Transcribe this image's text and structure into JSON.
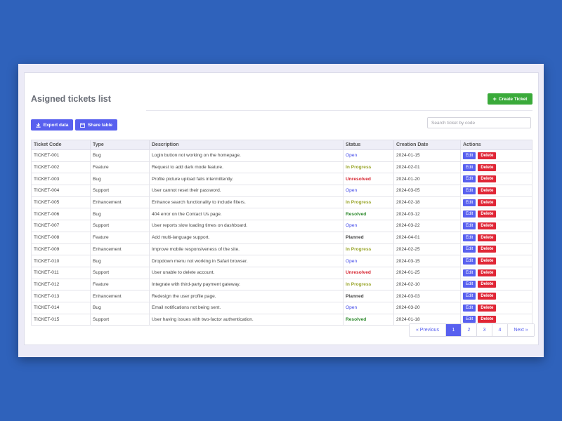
{
  "page": {
    "title": "Asigned tickets list",
    "create_label": "Create Ticket",
    "export_label": "Export data",
    "share_label": "Share table",
    "search_placeholder": "Search ticket by code"
  },
  "table": {
    "headers": [
      "Ticket Code",
      "Type",
      "Description",
      "Status",
      "Creation Date",
      "Actions"
    ],
    "edit_label": "Edit",
    "delete_label": "Delete",
    "rows": [
      {
        "code": "TICKET-001",
        "type": "Bug",
        "desc": "Login button not working on the homepage.",
        "status": "Open",
        "date": "2024-01-15"
      },
      {
        "code": "TICKET-002",
        "type": "Feature",
        "desc": "Request to add dark mode feature.",
        "status": "In Progress",
        "date": "2024-02-01"
      },
      {
        "code": "TICKET-003",
        "type": "Bug",
        "desc": "Profile picture upload fails intermittently.",
        "status": "Unresolved",
        "date": "2024-01-20"
      },
      {
        "code": "TICKET-004",
        "type": "Support",
        "desc": "User cannot reset their password.",
        "status": "Open",
        "date": "2024-03-05"
      },
      {
        "code": "TICKET-005",
        "type": "Enhancement",
        "desc": "Enhance search functionality to include filters.",
        "status": "In Progress",
        "date": "2024-02-18"
      },
      {
        "code": "TICKET-006",
        "type": "Bug",
        "desc": "404 error on the Contact Us page.",
        "status": "Resolved",
        "date": "2024-03-12"
      },
      {
        "code": "TICKET-007",
        "type": "Support",
        "desc": "User reports slow loading times on dashboard.",
        "status": "Open",
        "date": "2024-03-22"
      },
      {
        "code": "TICKET-008",
        "type": "Feature",
        "desc": "Add multi-language support.",
        "status": "Planned",
        "date": "2024-04-01"
      },
      {
        "code": "TICKET-009",
        "type": "Enhancement",
        "desc": "Improve mobile responsiveness of the site.",
        "status": "In Progress",
        "date": "2024-02-25"
      },
      {
        "code": "TICKET-010",
        "type": "Bug",
        "desc": "Dropdown menu not working in Safari browser.",
        "status": "Open",
        "date": "2024-03-15"
      },
      {
        "code": "TICKET-011",
        "type": "Support",
        "desc": "User unable to delete account.",
        "status": "Unresolved",
        "date": "2024-01-25"
      },
      {
        "code": "TICKET-012",
        "type": "Feature",
        "desc": "Integrate with third-party payment gateway.",
        "status": "In Progress",
        "date": "2024-02-10"
      },
      {
        "code": "TICKET-013",
        "type": "Enhancement",
        "desc": "Redesign the user profile page.",
        "status": "Planned",
        "date": "2024-03-03"
      },
      {
        "code": "TICKET-014",
        "type": "Bug",
        "desc": "Email notifications not being sent.",
        "status": "Open",
        "date": "2024-03-20"
      },
      {
        "code": "TICKET-015",
        "type": "Support",
        "desc": "User having issues with two-factor authentication.",
        "status": "Resolved",
        "date": "2024-01-18"
      }
    ]
  },
  "pagination": {
    "prev_label": "« Previous",
    "next_label": "Next »",
    "pages": [
      "1",
      "2",
      "3",
      "4"
    ],
    "current": "1"
  },
  "icons": {
    "create": "plus-icon",
    "export": "download-icon",
    "share": "calendar-share-icon"
  },
  "colors": {
    "background": "#2f62bb",
    "primary": "#5860ef",
    "success": "#3aaa3a",
    "danger": "#e02636",
    "status_open": "#3e45e8",
    "status_in_progress": "#9aa62c",
    "status_unresolved": "#d6222e",
    "status_resolved": "#2e8a2e",
    "status_planned": "#444444"
  }
}
